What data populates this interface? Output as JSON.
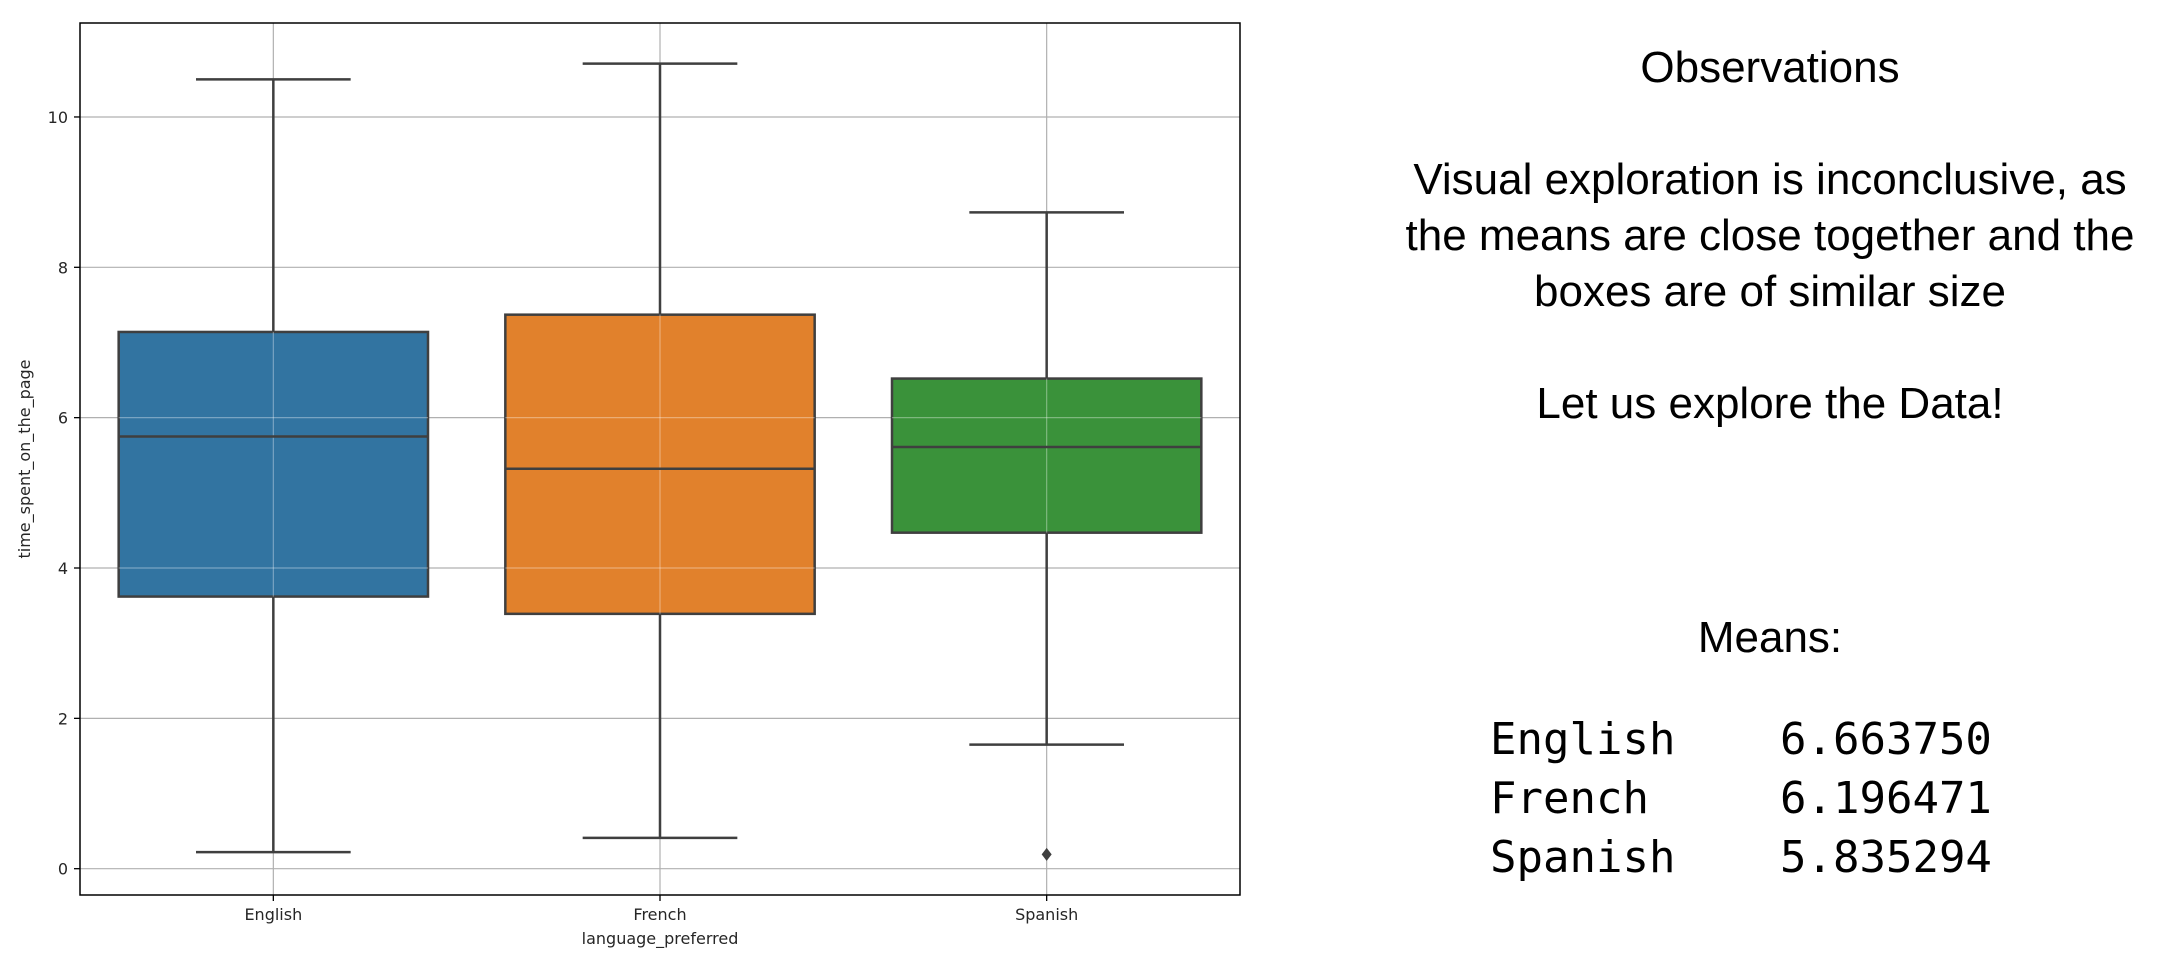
{
  "chart_data": {
    "type": "boxplot",
    "xlabel": "language_preferred",
    "ylabel": "time_spent_on_the_page",
    "categories": [
      "English",
      "French",
      "Spanish"
    ],
    "ylim": [
      -0.35,
      11.25
    ],
    "yticks": [
      0,
      2,
      4,
      6,
      8,
      10
    ],
    "grid": true,
    "boxes": [
      {
        "name": "English",
        "color": "#3274a1",
        "whisker_low": 0.22,
        "q1": 3.62,
        "median": 5.75,
        "q3": 7.14,
        "whisker_high": 10.5,
        "outliers": []
      },
      {
        "name": "French",
        "color": "#e1812c",
        "whisker_low": 0.41,
        "q1": 3.39,
        "median": 5.32,
        "q3": 7.37,
        "whisker_high": 10.71,
        "outliers": []
      },
      {
        "name": "Spanish",
        "color": "#3a923a",
        "whisker_low": 1.65,
        "q1": 4.47,
        "median": 5.61,
        "q3": 6.52,
        "whisker_high": 8.73,
        "outliers": [
          0.19
        ]
      }
    ]
  },
  "observations": {
    "title": "Observations",
    "line1": "Visual exploration is inconclusive, as",
    "line2": "the means are close together and the",
    "line3": "boxes are of similar size",
    "cta": "Let  us explore the Data!"
  },
  "means": {
    "title": "Means:",
    "rows": [
      {
        "name": "English",
        "value": "6.663750"
      },
      {
        "name": "French",
        "value": "6.196471"
      },
      {
        "name": "Spanish",
        "value": "5.835294"
      }
    ]
  }
}
